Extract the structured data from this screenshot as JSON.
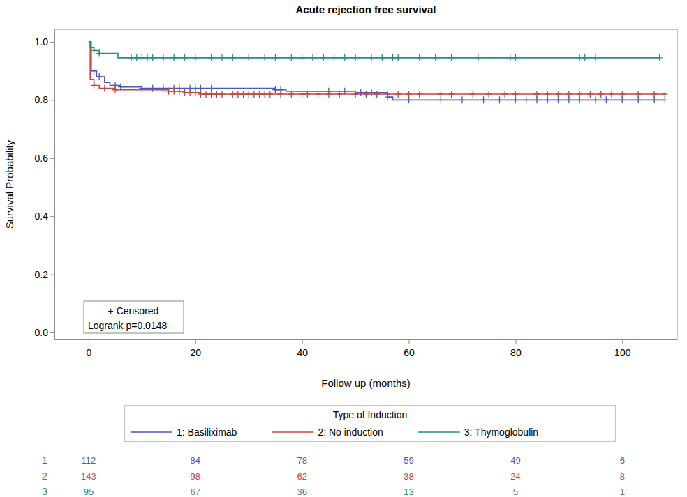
{
  "chart_data": {
    "type": "step",
    "title": "Acute rejection free survival",
    "xlabel": "Follow up (months)",
    "ylabel": "Survival Probability",
    "xlim": [
      -6.4,
      110.3
    ],
    "ylim": [
      -0.024,
      1.043
    ],
    "xticks": [
      0,
      20,
      40,
      60,
      80,
      100
    ],
    "yticks": [
      {
        "value": 0,
        "label": "0.0"
      },
      0.2,
      0.4,
      0.6,
      0.8,
      {
        "value": 1,
        "label": "1.0"
      }
    ],
    "grid": false,
    "legend": "bottom",
    "legend_title": "Type of Induction",
    "marker": "plus",
    "annotations": [
      "+ Censored",
      "Logrank p=0.0148"
    ],
    "at_risk_x": [
      0,
      20,
      40,
      60,
      80,
      100
    ],
    "series": [
      {
        "name": "1: Basiliximab",
        "color": "#4a58c0",
        "at_risk_label": "1",
        "x": [
          0,
          0.5,
          1.5,
          3,
          4,
          6,
          10,
          35,
          37,
          50,
          56,
          57,
          108
        ],
        "values": [
          1.0,
          0.9,
          0.88,
          0.86,
          0.85,
          0.845,
          0.84,
          0.835,
          0.83,
          0.825,
          0.81,
          0.8,
          0.8
        ],
        "censored": [
          1,
          2,
          5,
          6,
          10,
          12,
          14,
          16,
          17,
          19,
          20,
          21,
          23,
          35,
          36,
          45,
          48,
          51,
          53,
          56,
          60,
          66,
          70,
          74,
          77,
          80,
          82,
          84,
          86,
          88,
          90,
          92,
          95,
          97,
          100,
          103,
          106,
          108
        ],
        "at_risk": [
          112,
          84,
          78,
          59,
          49,
          6
        ]
      },
      {
        "name": "2: No induction",
        "color": "#c4463f",
        "at_risk_label": "2",
        "x": [
          0,
          0.3,
          1,
          2,
          5,
          15,
          18,
          21,
          108
        ],
        "values": [
          1.0,
          0.87,
          0.85,
          0.84,
          0.835,
          0.83,
          0.825,
          0.82,
          0.82
        ],
        "censored": [
          1,
          3,
          5,
          15,
          16,
          17,
          18,
          19,
          20,
          21,
          22,
          23,
          24,
          25,
          27,
          28,
          29,
          30,
          31,
          32,
          33,
          34,
          36,
          38,
          40,
          41,
          43,
          45,
          47,
          50,
          52,
          54,
          56,
          58,
          60,
          62,
          66,
          68,
          72,
          75,
          78,
          80,
          84,
          86,
          88,
          90,
          92,
          94,
          96,
          98,
          100,
          103,
          106,
          108
        ],
        "at_risk": [
          143,
          98,
          62,
          38,
          24,
          8
        ]
      },
      {
        "name": "3: Thymoglobulin",
        "color": "#2b8c86",
        "at_risk_label": "3",
        "x": [
          0,
          0.3,
          1,
          2,
          5.5,
          107
        ],
        "values": [
          1.0,
          0.98,
          0.97,
          0.96,
          0.945,
          0.945
        ],
        "censored": [
          1,
          2,
          8,
          9,
          10,
          11,
          12,
          14,
          16,
          18,
          20,
          23,
          25,
          27,
          30,
          33,
          35,
          38,
          40,
          42,
          44,
          46,
          48,
          50,
          53,
          55,
          57,
          58,
          62,
          65,
          68,
          73,
          79,
          80,
          92,
          93,
          95,
          107
        ],
        "at_risk": [
          95,
          67,
          36,
          13,
          5,
          1
        ]
      }
    ]
  }
}
